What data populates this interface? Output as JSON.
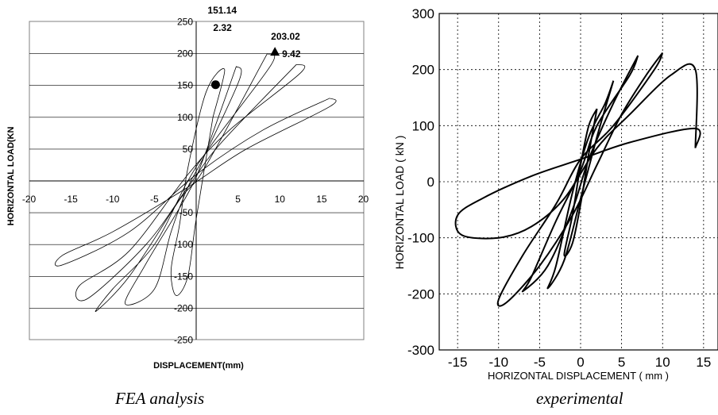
{
  "captions": {
    "left": "FEA analysis",
    "right": "experimental"
  },
  "chart_data": [
    {
      "type": "line",
      "title": "",
      "xlabel": "DISPLACEMENT(mm)",
      "ylabel": "HORIZONTAL LOAD(KN",
      "xlim": [
        -20,
        20
      ],
      "ylim": [
        -250,
        250
      ],
      "xticks": [
        -20,
        -15,
        -10,
        -5,
        0,
        5,
        10,
        15,
        20
      ],
      "yticks": [
        -250,
        -200,
        -150,
        -100,
        -50,
        0,
        50,
        100,
        150,
        200,
        250
      ],
      "grid": "horizontal",
      "series": [
        {
          "values": [
            [
              2.0,
              100
            ],
            [
              3.4,
              175
            ],
            [
              1.2,
              140
            ],
            [
              -1,
              20
            ],
            [
              -2,
              -70
            ],
            [
              -3,
              -140
            ],
            [
              -2.4,
              -180
            ],
            [
              -1,
              -150
            ],
            [
              0,
              -60
            ],
            [
              2,
              100
            ]
          ]
        },
        {
          "values": [
            [
              4.8,
              180
            ],
            [
              5.2,
              160
            ],
            [
              1,
              40
            ],
            [
              -1,
              -10
            ],
            [
              -3,
              -80
            ],
            [
              -5,
              -170
            ],
            [
              -8.5,
              -193
            ],
            [
              -6,
              -130
            ],
            [
              -1,
              -20
            ],
            [
              1,
              40
            ],
            [
              4.8,
              180
            ]
          ]
        },
        {
          "values": [
            [
              8.5,
              200
            ],
            [
              9,
              183
            ],
            [
              2,
              60
            ],
            [
              -1,
              0
            ],
            [
              -5,
              -100
            ],
            [
              -10,
              -170
            ],
            [
              -12,
              -205
            ],
            [
              -8,
              -150
            ],
            [
              -2,
              -30
            ],
            [
              1,
              20
            ],
            [
              8.5,
              200
            ]
          ]
        },
        {
          "values": [
            [
              12,
              183
            ],
            [
              12.5,
              170
            ],
            [
              4,
              80
            ],
            [
              -1,
              10
            ],
            [
              -8,
              -110
            ],
            [
              -14,
              -165
            ],
            [
              -13,
              -185
            ],
            [
              -6,
              -100
            ],
            [
              -1,
              -10
            ],
            [
              3,
              60
            ],
            [
              12,
              183
            ]
          ]
        },
        {
          "values": [
            [
              16,
              130
            ],
            [
              16,
              117
            ],
            [
              6,
              50
            ],
            [
              -1,
              -10
            ],
            [
              -10,
              -80
            ],
            [
              -16,
              -117
            ],
            [
              -16,
              -132
            ],
            [
              -8,
              -80
            ],
            [
              0,
              10
            ],
            [
              8,
              80
            ],
            [
              16,
              130
            ]
          ]
        }
      ],
      "annotations": [
        {
          "text": "151.14",
          "x": 2.32,
          "y": 151.14,
          "marker": "circle"
        },
        {
          "text": "2.32"
        },
        {
          "text": "203.02",
          "x": 9.42,
          "y": 203.02,
          "marker": "triangle"
        },
        {
          "text": "9.42"
        }
      ]
    },
    {
      "type": "line",
      "title": "",
      "xlabel": "HORIZONTAL DISPLACEMENT ( mm )",
      "ylabel": "HORIZONTAL LOAD ( kN )",
      "xlim": [
        -17,
        17
      ],
      "ylim": [
        -300,
        300
      ],
      "xticks": [
        -15,
        -10,
        -5,
        0,
        5,
        10,
        15
      ],
      "yticks": [
        -300,
        -200,
        -100,
        0,
        100,
        200,
        300
      ],
      "grid": "both-dotted",
      "series": [
        {
          "values": [
            [
              14,
              60
            ],
            [
              14,
              200
            ],
            [
              11,
              190
            ],
            [
              6,
              120
            ],
            [
              2,
              60
            ],
            [
              -2,
              -30
            ],
            [
              -6,
              -80
            ],
            [
              -10,
              -100
            ],
            [
              -14.5,
              -95
            ],
            [
              -15,
              -60
            ],
            [
              -12,
              -30
            ],
            [
              -6,
              10
            ],
            [
              0,
              40
            ],
            [
              6,
              70
            ],
            [
              14,
              95
            ],
            [
              14,
              60
            ]
          ]
        },
        {
          "values": [
            [
              10,
              230
            ],
            [
              9,
              200
            ],
            [
              4,
              100
            ],
            [
              0,
              40
            ],
            [
              -3,
              -40
            ],
            [
              -7,
              -130
            ],
            [
              -10,
              -210
            ],
            [
              -9,
              -215
            ],
            [
              -5,
              -150
            ],
            [
              -1,
              -60
            ],
            [
              2,
              30
            ],
            [
              5,
              120
            ],
            [
              8,
              190
            ],
            [
              10,
              230
            ]
          ]
        },
        {
          "values": [
            [
              7,
              225
            ],
            [
              6,
              190
            ],
            [
              2,
              100
            ],
            [
              0,
              20
            ],
            [
              -3,
              -70
            ],
            [
              -6,
              -170
            ],
            [
              -7,
              -195
            ],
            [
              -4,
              -150
            ],
            [
              -1,
              -50
            ],
            [
              1,
              40
            ],
            [
              4,
              140
            ],
            [
              7,
              225
            ]
          ]
        },
        {
          "values": [
            [
              4,
              180
            ],
            [
              3,
              140
            ],
            [
              1,
              80
            ],
            [
              -1,
              -20
            ],
            [
              -3,
              -150
            ],
            [
              -4,
              -190
            ],
            [
              -2,
              -140
            ],
            [
              0,
              -30
            ],
            [
              2,
              80
            ],
            [
              4,
              180
            ]
          ]
        },
        {
          "values": [
            [
              2,
              130
            ],
            [
              1,
              100
            ],
            [
              0,
              30
            ],
            [
              -1,
              -60
            ],
            [
              -2,
              -130
            ],
            [
              -1,
              -110
            ],
            [
              0,
              -40
            ],
            [
              1,
              50
            ],
            [
              2,
              130
            ]
          ]
        }
      ]
    }
  ]
}
